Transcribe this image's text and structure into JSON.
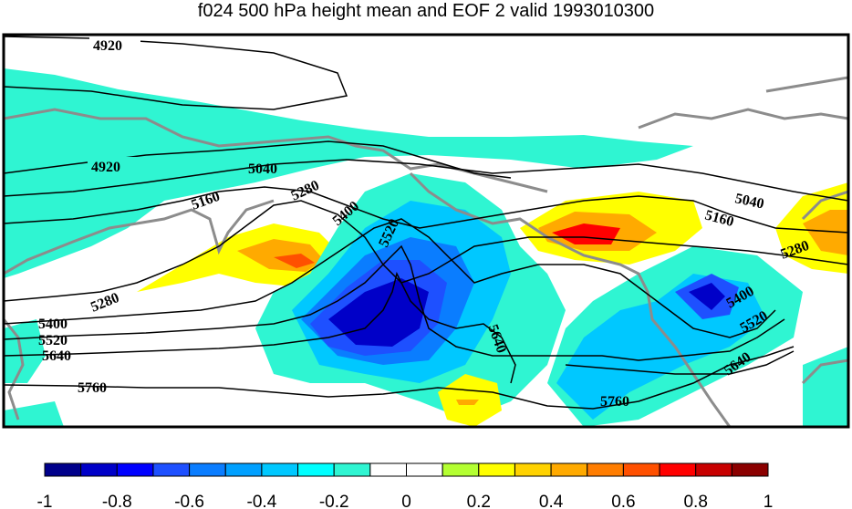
{
  "title": "f024 500 hPa height mean and EOF 2 valid 1993010300",
  "contour_labels": [
    {
      "text": "4920"
    },
    {
      "text": "4920"
    },
    {
      "text": "5040"
    },
    {
      "text": "5040"
    },
    {
      "text": "5160"
    },
    {
      "text": "5160"
    },
    {
      "text": "5280"
    },
    {
      "text": "5280"
    },
    {
      "text": "5280"
    },
    {
      "text": "5400"
    },
    {
      "text": "5400"
    },
    {
      "text": "5400"
    },
    {
      "text": "5520"
    },
    {
      "text": "5520"
    },
    {
      "text": "5520"
    },
    {
      "text": "5640"
    },
    {
      "text": "5640"
    },
    {
      "text": "5640"
    },
    {
      "text": "5760"
    },
    {
      "text": "5760"
    }
  ],
  "colorbar": {
    "colors": [
      "#00008b",
      "#0000c8",
      "#0000ff",
      "#1e50ff",
      "#0a7dff",
      "#00a0ff",
      "#00c8ff",
      "#00ffff",
      "#2ff5d2",
      "#ffffff",
      "#ffffff",
      "#b4ff32",
      "#ffff00",
      "#ffd200",
      "#ffaa00",
      "#ff7d00",
      "#ff5000",
      "#ff0000",
      "#c80000",
      "#8b0000"
    ],
    "ticks": [
      "-1",
      "-0.8",
      "-0.6",
      "-0.4",
      "-0.2",
      "0",
      "0.2",
      "0.4",
      "0.6",
      "0.8",
      "1"
    ]
  }
}
